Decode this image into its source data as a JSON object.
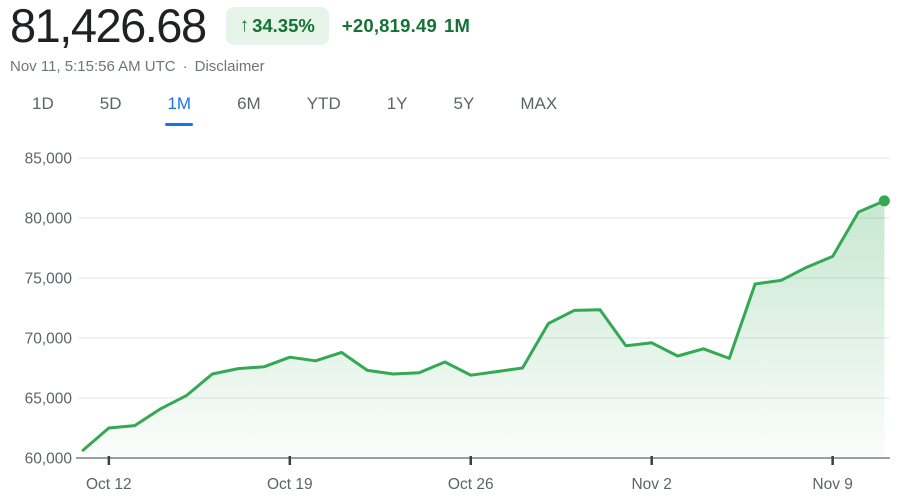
{
  "header": {
    "price": "81,426.68",
    "change_badge": {
      "arrow_icon": "↑",
      "percent": "34.35%"
    },
    "change_value": "+20,819.49",
    "change_period": "1M",
    "timestamp": "Nov 11, 5:15:56 AM UTC",
    "separator": "·",
    "disclaimer_label": "Disclaimer"
  },
  "tabs": {
    "active_index": 2,
    "items": [
      {
        "label": "1D"
      },
      {
        "label": "5D"
      },
      {
        "label": "1M"
      },
      {
        "label": "6M"
      },
      {
        "label": "YTD"
      },
      {
        "label": "1Y"
      },
      {
        "label": "5Y"
      },
      {
        "label": "MAX"
      }
    ]
  },
  "chart_data": {
    "type": "area",
    "series_name": "price",
    "x": [
      "Oct 11",
      "Oct 12",
      "Oct 13",
      "Oct 14",
      "Oct 15",
      "Oct 16",
      "Oct 17",
      "Oct 18",
      "Oct 19",
      "Oct 20",
      "Oct 21",
      "Oct 22",
      "Oct 23",
      "Oct 24",
      "Oct 25",
      "Oct 26",
      "Oct 27",
      "Oct 28",
      "Oct 29",
      "Oct 30",
      "Oct 31",
      "Nov 1",
      "Nov 2",
      "Nov 3",
      "Nov 4",
      "Nov 5",
      "Nov 6",
      "Nov 7",
      "Nov 8",
      "Nov 9",
      "Nov 10",
      "Nov 11"
    ],
    "values": [
      60650,
      62500,
      62700,
      64100,
      65200,
      67000,
      67450,
      67600,
      68400,
      68100,
      68800,
      67300,
      67000,
      67100,
      68000,
      66900,
      67200,
      67500,
      71200,
      72300,
      72350,
      69350,
      69600,
      68500,
      69100,
      68300,
      74500,
      74800,
      75900,
      76800,
      80500,
      81426.68
    ],
    "x_tick_labels": [
      "Oct 12",
      "Oct 19",
      "Oct 26",
      "Nov 2",
      "Nov 9"
    ],
    "x_tick_indices": [
      1,
      8,
      15,
      22,
      29
    ],
    "y_ticks": [
      60000,
      65000,
      70000,
      75000,
      80000,
      85000
    ],
    "y_tick_labels": [
      "60,000",
      "65,000",
      "70,000",
      "75,000",
      "80,000",
      "85,000"
    ],
    "ylim": [
      60000,
      85000
    ],
    "grid": true,
    "end_marker": true
  },
  "colors": {
    "price_text": "#202124",
    "green_text": "#137333",
    "badge_bg": "#e6f4ea",
    "line_green": "#34a853",
    "accent_blue": "#1a73e8",
    "grid_line": "#e8eaed",
    "axis_line": "#9aa0a6",
    "axis_tick": "#3c4043",
    "label_gray": "#5f6368",
    "subtitle_gray": "#70757a"
  }
}
